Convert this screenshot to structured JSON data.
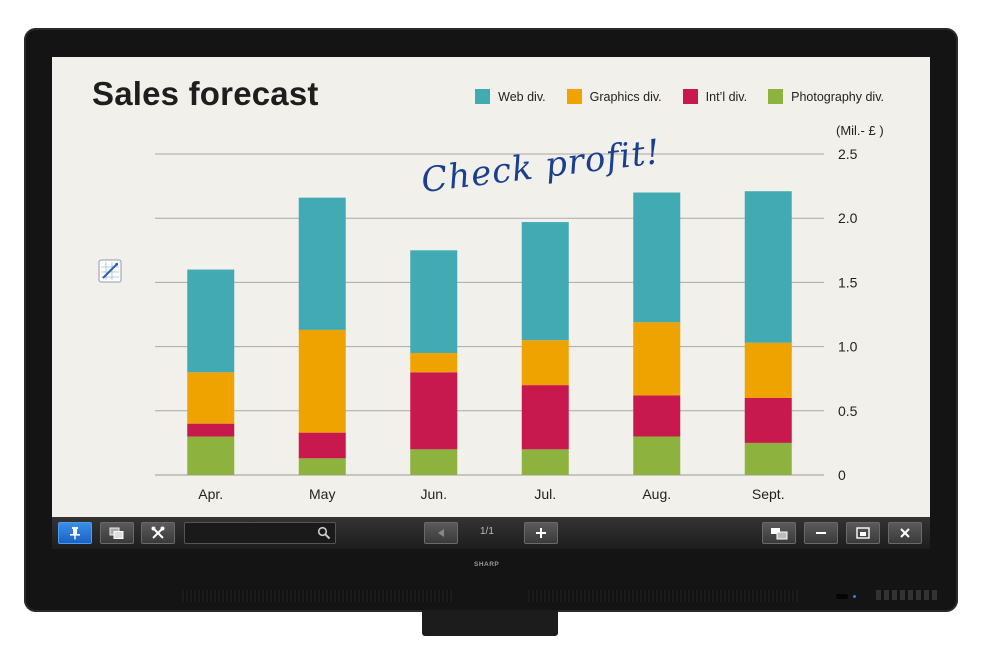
{
  "chart_data": {
    "type": "bar",
    "stacked": true,
    "title": "Sales forecast",
    "unit_label": "(Mil.- £ )",
    "categories": [
      "Apr.",
      "May",
      "Jun.",
      "Jul.",
      "Aug.",
      "Sept."
    ],
    "ylim": [
      0,
      2.5
    ],
    "yticks": [
      "0",
      "0.5",
      "1.0",
      "1.5",
      "2.0",
      "2.5"
    ],
    "ytick_values": [
      0,
      0.5,
      1.0,
      1.5,
      2.0,
      2.5
    ],
    "grid": true,
    "y_axis_side": "right",
    "legend_position": "top-right",
    "series": [
      {
        "name": "Photography div.",
        "color": "#8db33e",
        "values": [
          0.3,
          0.13,
          0.2,
          0.2,
          0.3,
          0.25
        ]
      },
      {
        "name": "Int'l div.",
        "color": "#c8194e",
        "values": [
          0.1,
          0.2,
          0.6,
          0.5,
          0.32,
          0.35
        ]
      },
      {
        "name": "Graphics div.",
        "color": "#efa300",
        "values": [
          0.4,
          0.8,
          0.15,
          0.35,
          0.57,
          0.43
        ]
      },
      {
        "name": "Web div.",
        "color": "#42aab3",
        "values": [
          0.8,
          1.03,
          0.8,
          0.92,
          1.01,
          1.18
        ]
      }
    ]
  },
  "legend": [
    {
      "label": "Web div.",
      "color": "#42aab3"
    },
    {
      "label": "Graphics div.",
      "color": "#efa300"
    },
    {
      "label": "Int’l div.",
      "color": "#c8194e"
    },
    {
      "label": "Photography div.",
      "color": "#8db33e"
    }
  ],
  "annotation": {
    "text": "Check profit!"
  },
  "toolbar": {
    "pin_icon": "pin-icon",
    "pages_icon": "pages-icon",
    "tools_icon": "tools-icon",
    "search_placeholder": "",
    "search_icon": "magnifier-icon",
    "prev_icon": "triangle-left-icon",
    "page_indicator": "1/1",
    "add_icon": "plus-icon",
    "display_icon": "display-switch-icon",
    "minimize_icon": "minus-icon",
    "window_icon": "window-icon",
    "close_icon": "close-icon"
  },
  "side_tool_icon": "chart-edit-icon",
  "bezel": {
    "brand": "SHARP"
  }
}
